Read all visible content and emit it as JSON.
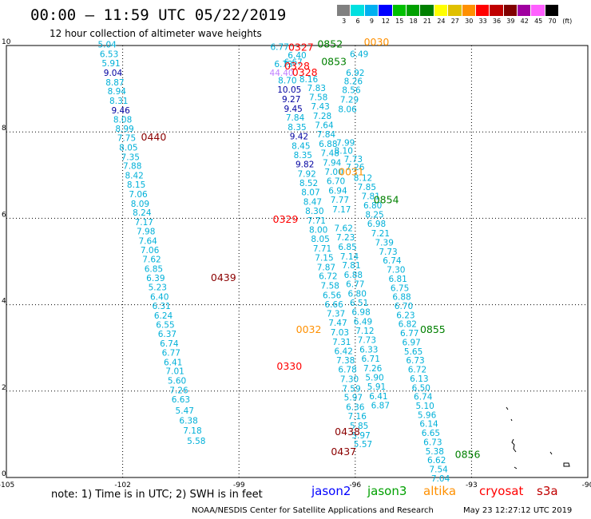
{
  "header": {
    "title": "00:00 – 11:59 UTC 05/22/2019",
    "subtitle": "12 hour collection of altimeter wave heights"
  },
  "color_scale": {
    "unit": "(ft)",
    "stops": [
      {
        "label": "3",
        "color": "#808080"
      },
      {
        "label": "6",
        "color": "#00e0e0"
      },
      {
        "label": "9",
        "color": "#00b0f0"
      },
      {
        "label": "12",
        "color": "#0000ff"
      },
      {
        "label": "15",
        "color": "#00c000"
      },
      {
        "label": "18",
        "color": "#00a000"
      },
      {
        "label": "21",
        "color": "#008000"
      },
      {
        "label": "24",
        "color": "#ffff00"
      },
      {
        "label": "27",
        "color": "#e0c000"
      },
      {
        "label": "30",
        "color": "#ff9000"
      },
      {
        "label": "33",
        "color": "#ff0000"
      },
      {
        "label": "36",
        "color": "#c00000"
      },
      {
        "label": "39",
        "color": "#800000"
      },
      {
        "label": "42",
        "color": "#a000a0"
      },
      {
        "label": "45",
        "color": "#ff60ff"
      },
      {
        "label": "70",
        "color": "#000000"
      }
    ]
  },
  "map": {
    "lon_range": [
      -105,
      -90
    ],
    "lat_range": [
      0,
      10
    ],
    "x_ticks": [
      "-105",
      "-102",
      "-99",
      "-96",
      "-93",
      "-90"
    ],
    "y_ticks": [
      "0",
      "2",
      "4",
      "6",
      "8",
      "10"
    ]
  },
  "tracks": [
    {
      "colorKey": "cyan",
      "points": [
        {
          "v": "5.04",
          "lon": -102.4,
          "lat": 9.95
        },
        {
          "v": "6.53",
          "lon": -102.35,
          "lat": 9.73
        },
        {
          "v": "5.91",
          "lon": -102.3,
          "lat": 9.52
        },
        {
          "v": "9.04",
          "lon": -102.25,
          "lat": 9.3,
          "c": "navy"
        },
        {
          "v": "8.87",
          "lon": -102.2,
          "lat": 9.08
        },
        {
          "v": "8.94",
          "lon": -102.15,
          "lat": 8.87
        },
        {
          "v": "8.31",
          "lon": -102.1,
          "lat": 8.65
        },
        {
          "v": "9.46",
          "lon": -102.05,
          "lat": 8.43,
          "c": "navy"
        },
        {
          "v": "8.08",
          "lon": -102.0,
          "lat": 8.22
        },
        {
          "v": "8.99",
          "lon": -101.95,
          "lat": 8.0
        },
        {
          "v": "7.75",
          "lon": -101.9,
          "lat": 7.79
        },
        {
          "v": "8.05",
          "lon": -101.85,
          "lat": 7.57
        },
        {
          "v": "7.35",
          "lon": -101.8,
          "lat": 7.35
        },
        {
          "v": "7.88",
          "lon": -101.75,
          "lat": 7.14
        },
        {
          "v": "8.42",
          "lon": -101.7,
          "lat": 6.92
        },
        {
          "v": "8.15",
          "lon": -101.65,
          "lat": 6.71
        },
        {
          "v": "7.06",
          "lon": -101.6,
          "lat": 6.49
        },
        {
          "v": "8.09",
          "lon": -101.55,
          "lat": 6.27
        },
        {
          "v": "8.24",
          "lon": -101.5,
          "lat": 6.06
        },
        {
          "v": "7.17",
          "lon": -101.45,
          "lat": 5.84
        },
        {
          "v": "7.98",
          "lon": -101.4,
          "lat": 5.63
        },
        {
          "v": "7.64",
          "lon": -101.35,
          "lat": 5.41
        },
        {
          "v": "7.06",
          "lon": -101.3,
          "lat": 5.19
        },
        {
          "v": "7.62",
          "lon": -101.25,
          "lat": 4.98
        },
        {
          "v": "6.85",
          "lon": -101.2,
          "lat": 4.76
        },
        {
          "v": "6.39",
          "lon": -101.15,
          "lat": 4.55
        },
        {
          "v": "5.23",
          "lon": -101.1,
          "lat": 4.33
        },
        {
          "v": "6.40",
          "lon": -101.05,
          "lat": 4.11
        },
        {
          "v": "6.31",
          "lon": -101.0,
          "lat": 3.9
        },
        {
          "v": "6.24",
          "lon": -100.95,
          "lat": 3.68
        },
        {
          "v": "6.55",
          "lon": -100.9,
          "lat": 3.47
        },
        {
          "v": "6.37",
          "lon": -100.85,
          "lat": 3.25
        },
        {
          "v": "6.74",
          "lon": -100.8,
          "lat": 3.03
        },
        {
          "v": "6.77",
          "lon": -100.75,
          "lat": 2.82
        },
        {
          "v": "6.41",
          "lon": -100.7,
          "lat": 2.6
        },
        {
          "v": "7.01",
          "lon": -100.65,
          "lat": 2.39
        },
        {
          "v": "5.60",
          "lon": -100.6,
          "lat": 2.17
        },
        {
          "v": "7.26",
          "lon": -100.55,
          "lat": 1.95
        },
        {
          "v": "6.63",
          "lon": -100.5,
          "lat": 1.74
        },
        {
          "v": "5.47",
          "lon": -100.4,
          "lat": 1.48
        },
        {
          "v": "6.38",
          "lon": -100.3,
          "lat": 1.25
        },
        {
          "v": "7.18",
          "lon": -100.2,
          "lat": 1.02
        },
        {
          "v": "5.58",
          "lon": -100.1,
          "lat": 0.78
        }
      ],
      "labels": [
        {
          "t": "0440",
          "lon": -101.2,
          "lat": 7.8,
          "c": "darkred"
        },
        {
          "t": "0439",
          "lon": -99.4,
          "lat": 4.55,
          "c": "darkred"
        }
      ]
    },
    {
      "colorKey": "cyan",
      "points": [
        {
          "v": "6.77",
          "lon": -97.95,
          "lat": 9.9
        },
        {
          "v": "6.73",
          "lon": -97.85,
          "lat": 9.5
        },
        {
          "v": "8.70",
          "lon": -97.75,
          "lat": 9.12
        },
        {
          "v": "10.05",
          "lon": -97.7,
          "lat": 8.91,
          "c": "navy"
        },
        {
          "v": "9.27",
          "lon": -97.65,
          "lat": 8.69,
          "c": "navy"
        },
        {
          "v": "9.45",
          "lon": -97.6,
          "lat": 8.47,
          "c": "navy"
        },
        {
          "v": "7.84",
          "lon": -97.55,
          "lat": 8.26
        },
        {
          "v": "8.35",
          "lon": -97.5,
          "lat": 8.04
        },
        {
          "v": "9.42",
          "lon": -97.45,
          "lat": 7.83,
          "c": "navy"
        },
        {
          "v": "8.45",
          "lon": -97.4,
          "lat": 7.61
        },
        {
          "v": "8.35",
          "lon": -97.35,
          "lat": 7.39
        },
        {
          "v": "9.82",
          "lon": -97.3,
          "lat": 7.18,
          "c": "navy"
        },
        {
          "v": "7.92",
          "lon": -97.25,
          "lat": 6.96
        },
        {
          "v": "8.52",
          "lon": -97.2,
          "lat": 6.75
        },
        {
          "v": "8.07",
          "lon": -97.15,
          "lat": 6.53
        },
        {
          "v": "8.47",
          "lon": -97.1,
          "lat": 6.31
        },
        {
          "v": "8.30",
          "lon": -97.05,
          "lat": 6.1
        },
        {
          "v": "7.71",
          "lon": -97.0,
          "lat": 5.88
        },
        {
          "v": "8.00",
          "lon": -96.95,
          "lat": 5.67
        },
        {
          "v": "8.05",
          "lon": -96.9,
          "lat": 5.45
        },
        {
          "v": "7.71",
          "lon": -96.85,
          "lat": 5.23
        },
        {
          "v": "7.15",
          "lon": -96.8,
          "lat": 5.02
        },
        {
          "v": "7.87",
          "lon": -96.75,
          "lat": 4.8
        },
        {
          "v": "6.72",
          "lon": -96.7,
          "lat": 4.59
        },
        {
          "v": "7.58",
          "lon": -96.65,
          "lat": 4.37
        },
        {
          "v": "6.56",
          "lon": -96.6,
          "lat": 4.15
        },
        {
          "v": "6.66",
          "lon": -96.55,
          "lat": 3.94
        },
        {
          "v": "7.37",
          "lon": -96.5,
          "lat": 3.72
        },
        {
          "v": "7.47",
          "lon": -96.45,
          "lat": 3.51
        },
        {
          "v": "7.03",
          "lon": -96.4,
          "lat": 3.29
        },
        {
          "v": "7.31",
          "lon": -96.35,
          "lat": 3.07
        },
        {
          "v": "6.42",
          "lon": -96.3,
          "lat": 2.86
        },
        {
          "v": "7.38",
          "lon": -96.25,
          "lat": 2.64
        },
        {
          "v": "6.78",
          "lon": -96.2,
          "lat": 2.43
        },
        {
          "v": "7.30",
          "lon": -96.15,
          "lat": 2.21
        },
        {
          "v": "7.59",
          "lon": -96.1,
          "lat": 1.99
        },
        {
          "v": "5.97",
          "lon": -96.05,
          "lat": 1.78
        },
        {
          "v": "6.36",
          "lon": -96.0,
          "lat": 1.56
        },
        {
          "v": "7.16",
          "lon": -95.95,
          "lat": 1.35
        },
        {
          "v": "5.85",
          "lon": -95.9,
          "lat": 1.13
        },
        {
          "v": "5.97",
          "lon": -95.85,
          "lat": 0.91
        },
        {
          "v": "5.57",
          "lon": -95.8,
          "lat": 0.7
        }
      ],
      "labels": [
        {
          "t": "0438",
          "lon": -96.2,
          "lat": 0.98,
          "c": "darkred"
        },
        {
          "t": "0437",
          "lon": -96.3,
          "lat": 0.52,
          "c": "darkred"
        }
      ]
    },
    {
      "colorKey": "cyan",
      "points": [
        {
          "v": "6.40",
          "lon": -97.5,
          "lat": 9.7
        },
        {
          "v": "6.67",
          "lon": -97.6,
          "lat": 9.55
        },
        {
          "v": "44.40",
          "lon": -97.9,
          "lat": 9.3,
          "c": "violet"
        },
        {
          "v": "8.16",
          "lon": -97.2,
          "lat": 9.15
        },
        {
          "v": "7.83",
          "lon": -97.0,
          "lat": 8.95
        },
        {
          "v": "7.58",
          "lon": -96.95,
          "lat": 8.73
        },
        {
          "v": "7.43",
          "lon": -96.9,
          "lat": 8.52
        },
        {
          "v": "7.28",
          "lon": -96.85,
          "lat": 8.3
        },
        {
          "v": "7.64",
          "lon": -96.8,
          "lat": 8.09
        },
        {
          "v": "7.84",
          "lon": -96.75,
          "lat": 7.87
        },
        {
          "v": "6.88",
          "lon": -96.7,
          "lat": 7.65
        },
        {
          "v": "7.48",
          "lon": -96.65,
          "lat": 7.44
        },
        {
          "v": "7.94",
          "lon": -96.6,
          "lat": 7.22
        },
        {
          "v": "7.00",
          "lon": -96.55,
          "lat": 7.01
        },
        {
          "v": "6.70",
          "lon": -96.5,
          "lat": 6.79
        },
        {
          "v": "6.94",
          "lon": -96.45,
          "lat": 6.57
        },
        {
          "v": "7.77",
          "lon": -96.4,
          "lat": 6.36
        },
        {
          "v": "7.17",
          "lon": -96.35,
          "lat": 6.14
        },
        {
          "v": "7.62",
          "lon": -96.3,
          "lat": 5.7
        },
        {
          "v": "7.23",
          "lon": -96.25,
          "lat": 5.49
        },
        {
          "v": "6.85",
          "lon": -96.2,
          "lat": 5.27
        },
        {
          "v": "7.14",
          "lon": -96.15,
          "lat": 5.05
        },
        {
          "v": "7.81",
          "lon": -96.1,
          "lat": 4.84
        },
        {
          "v": "6.88",
          "lon": -96.05,
          "lat": 4.62
        },
        {
          "v": "6.77",
          "lon": -96.0,
          "lat": 4.41
        },
        {
          "v": "6.80",
          "lon": -95.95,
          "lat": 4.19
        },
        {
          "v": "6.51",
          "lon": -95.9,
          "lat": 3.97
        },
        {
          "v": "6.98",
          "lon": -95.85,
          "lat": 3.76
        },
        {
          "v": "6.49",
          "lon": -95.8,
          "lat": 3.54
        },
        {
          "v": "7.12",
          "lon": -95.75,
          "lat": 3.33
        },
        {
          "v": "7.73",
          "lon": -95.7,
          "lat": 3.11
        },
        {
          "v": "6.33",
          "lon": -95.65,
          "lat": 2.89
        },
        {
          "v": "6.71",
          "lon": -95.6,
          "lat": 2.68
        },
        {
          "v": "7.26",
          "lon": -95.55,
          "lat": 2.46
        },
        {
          "v": "5.90",
          "lon": -95.5,
          "lat": 2.25
        },
        {
          "v": "5.91",
          "lon": -95.45,
          "lat": 2.03
        },
        {
          "v": "6.41",
          "lon": -95.4,
          "lat": 1.81
        },
        {
          "v": "6.87",
          "lon": -95.35,
          "lat": 1.6
        }
      ],
      "labels": [
        {
          "t": "0327",
          "lon": -97.4,
          "lat": 9.88,
          "c": "red"
        },
        {
          "t": "0328",
          "lon": -97.5,
          "lat": 9.45,
          "c": "red"
        },
        {
          "t": "0328",
          "lon": -97.3,
          "lat": 9.3,
          "c": "red"
        },
        {
          "t": "0329",
          "lon": -97.8,
          "lat": 5.9,
          "c": "red"
        },
        {
          "t": "0330",
          "lon": -97.7,
          "lat": 2.5,
          "c": "red"
        }
      ]
    },
    {
      "colorKey": "cyan",
      "points": [
        {
          "v": "6.49",
          "lon": -95.9,
          "lat": 9.73
        },
        {
          "v": "6.92",
          "lon": -96.0,
          "lat": 9.3
        },
        {
          "v": "8.26",
          "lon": -96.05,
          "lat": 9.1
        },
        {
          "v": "8.56",
          "lon": -96.1,
          "lat": 8.9
        },
        {
          "v": "7.29",
          "lon": -96.15,
          "lat": 8.68
        },
        {
          "v": "8.06",
          "lon": -96.2,
          "lat": 8.46
        },
        {
          "v": "7.99",
          "lon": -96.25,
          "lat": 7.68
        },
        {
          "v": "8.10",
          "lon": -96.3,
          "lat": 7.5
        },
        {
          "v": "7.73",
          "lon": -96.05,
          "lat": 7.3
        },
        {
          "v": "7.26",
          "lon": -96.0,
          "lat": 7.12
        },
        {
          "v": "8.12",
          "lon": -95.8,
          "lat": 6.87
        },
        {
          "v": "7.85",
          "lon": -95.7,
          "lat": 6.65
        },
        {
          "v": "7.81",
          "lon": -95.6,
          "lat": 6.44
        },
        {
          "v": "6.80",
          "lon": -95.55,
          "lat": 6.23
        },
        {
          "v": "8.25",
          "lon": -95.5,
          "lat": 6.02
        },
        {
          "v": "6.98",
          "lon": -95.45,
          "lat": 5.8
        },
        {
          "v": "7.21",
          "lon": -95.35,
          "lat": 5.58
        },
        {
          "v": "7.39",
          "lon": -95.25,
          "lat": 5.37
        },
        {
          "v": "7.73",
          "lon": -95.15,
          "lat": 5.16
        },
        {
          "v": "6.74",
          "lon": -95.05,
          "lat": 4.95
        },
        {
          "v": "7.30",
          "lon": -94.95,
          "lat": 4.74
        },
        {
          "v": "6.81",
          "lon": -94.9,
          "lat": 4.53
        },
        {
          "v": "6.75",
          "lon": -94.85,
          "lat": 4.32
        },
        {
          "v": "6.88",
          "lon": -94.8,
          "lat": 4.11
        },
        {
          "v": "6.70",
          "lon": -94.75,
          "lat": 3.9
        },
        {
          "v": "6.23",
          "lon": -94.7,
          "lat": 3.69
        },
        {
          "v": "6.82",
          "lon": -94.65,
          "lat": 3.48
        },
        {
          "v": "6.77",
          "lon": -94.6,
          "lat": 3.27
        },
        {
          "v": "6.97",
          "lon": -94.55,
          "lat": 3.06
        },
        {
          "v": "5.65",
          "lon": -94.5,
          "lat": 2.85
        },
        {
          "v": "6.73",
          "lon": -94.45,
          "lat": 2.64
        },
        {
          "v": "6.72",
          "lon": -94.4,
          "lat": 2.43
        },
        {
          "v": "6.13",
          "lon": -94.35,
          "lat": 2.22
        },
        {
          "v": "6.50",
          "lon": -94.3,
          "lat": 2.01
        },
        {
          "v": "6.74",
          "lon": -94.25,
          "lat": 1.8
        },
        {
          "v": "5.10",
          "lon": -94.2,
          "lat": 1.59
        },
        {
          "v": "5.96",
          "lon": -94.15,
          "lat": 1.38
        },
        {
          "v": "6.14",
          "lon": -94.1,
          "lat": 1.17
        },
        {
          "v": "6.65",
          "lon": -94.05,
          "lat": 0.96
        },
        {
          "v": "6.73",
          "lon": -94.0,
          "lat": 0.75
        },
        {
          "v": "5.38",
          "lon": -93.95,
          "lat": 0.54
        },
        {
          "v": "6.62",
          "lon": -93.9,
          "lat": 0.33
        },
        {
          "v": "7.54",
          "lon": -93.85,
          "lat": 0.12
        },
        {
          "v": "7.04",
          "lon": -93.8,
          "lat": -0.09
        }
      ],
      "labels": [
        {
          "t": "0852",
          "lon": -96.65,
          "lat": 9.95,
          "c": "green"
        },
        {
          "t": "0853",
          "lon": -96.55,
          "lat": 9.55,
          "c": "green"
        },
        {
          "t": "0854",
          "lon": -95.2,
          "lat": 6.35,
          "c": "green"
        },
        {
          "t": "0855",
          "lon": -94.0,
          "lat": 3.35,
          "c": "green"
        },
        {
          "t": "0856",
          "lon": -93.1,
          "lat": 0.45,
          "c": "green"
        },
        {
          "t": "0031",
          "lon": -96.1,
          "lat": 7.0,
          "c": "orange"
        },
        {
          "t": "0030",
          "lon": -95.45,
          "lat": 10.0,
          "c": "orange"
        },
        {
          "t": "0032",
          "lon": -97.2,
          "lat": 3.35,
          "c": "orange"
        }
      ]
    }
  ],
  "legend": [
    {
      "text": "jason2",
      "color": "#0000ff"
    },
    {
      "text": "jason3",
      "color": "#00a000"
    },
    {
      "text": "altika",
      "color": "#ff9000"
    },
    {
      "text": "cryosat",
      "color": "#ff0000"
    },
    {
      "text": "s3a",
      "color": "#c00000"
    }
  ],
  "note": "note:  1) Time is in UTC;  2) SWH is in feet",
  "footer": {
    "left": "NOAA/NESDIS Center for Satellite Applications and Research",
    "right": "May 23 12:27:12 UTC 2019"
  }
}
